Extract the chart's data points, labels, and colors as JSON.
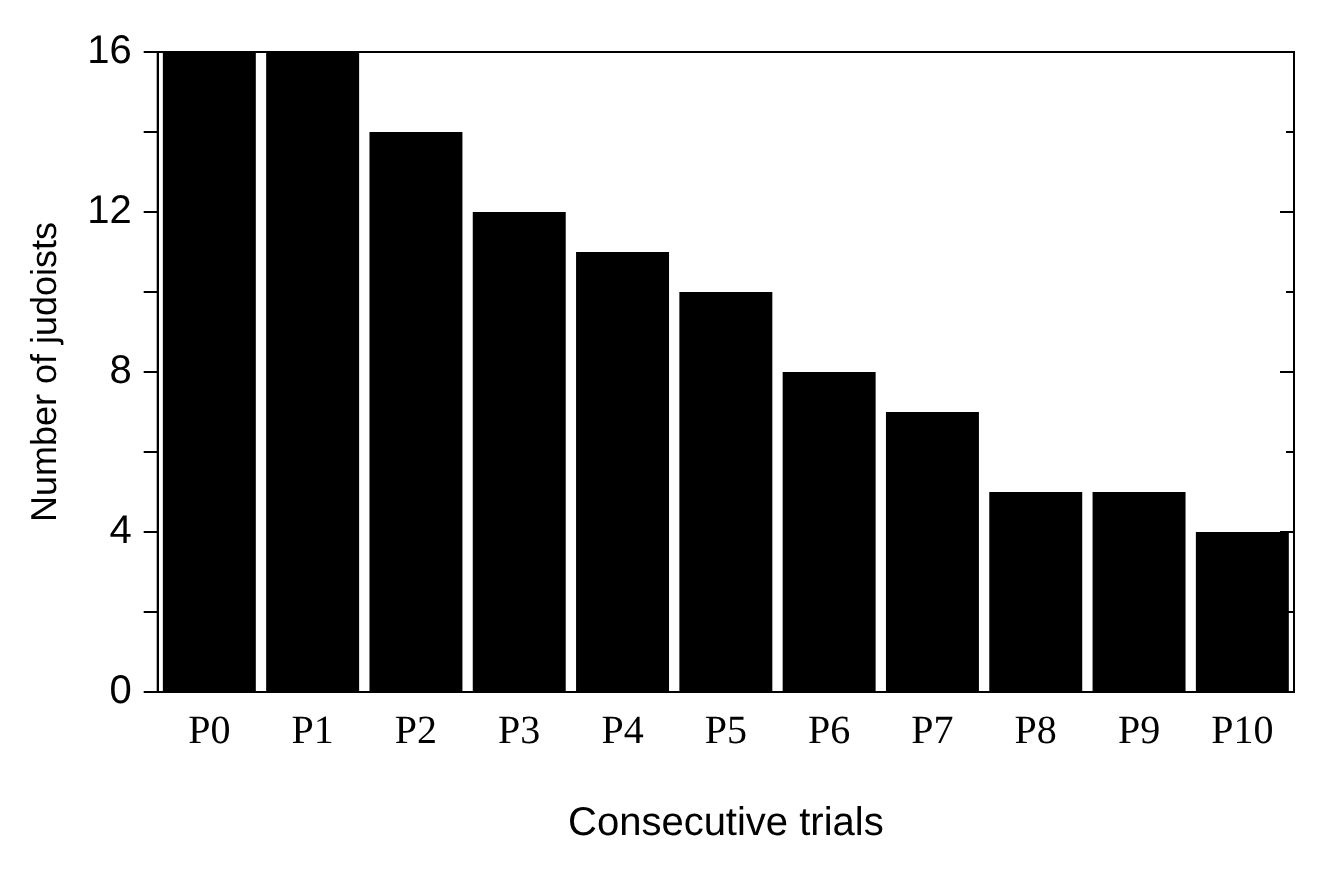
{
  "chart_data": {
    "type": "bar",
    "xlabel": "Consecutive trials",
    "ylabel": "Number of judoists",
    "categories": [
      "P0",
      "P1",
      "P2",
      "P3",
      "P4",
      "P5",
      "P6",
      "P7",
      "P8",
      "P9",
      "P10"
    ],
    "values": [
      16,
      16,
      14,
      12,
      11,
      10,
      8,
      7,
      5,
      5,
      4
    ],
    "color": "#000000",
    "ylim": [
      0,
      16
    ],
    "yticks": [
      0,
      {
        "value": 2,
        "label": null
      },
      4,
      {
        "value": 6,
        "label": null
      },
      8,
      {
        "value": 10,
        "label": null
      },
      12,
      {
        "value": 14,
        "label": null
      },
      16
    ],
    "grid": false,
    "legend": false
  }
}
